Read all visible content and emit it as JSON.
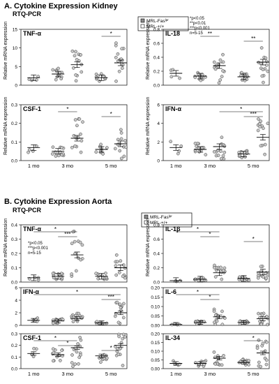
{
  "figure": {
    "colors": {
      "line": "#000000",
      "dot_fill": "#c8c8c8",
      "dot_edge": "#3a3a3a"
    },
    "groups": [
      "1 mo",
      "3 mo",
      "5 mo"
    ],
    "sections": [
      {
        "title": "A. Cytokine Expression Kidney",
        "subtitle": "RTQ-PCR",
        "legend": [
          "MRL-Fas",
          "MRL-+/+"
        ],
        "legend_superscript": "lpr",
        "stats_note": [
          "*p<0.05",
          "**p<0.01",
          "***p<0.001",
          "n=5-15"
        ]
      },
      {
        "title": "B. Cytokine Expression Aorta",
        "subtitle": "RTQ-PCR",
        "legend": [
          "MRL-Fas",
          "MRL-+/+"
        ],
        "legend_superscript": "lpr",
        "stats_note": [
          "*p<0.05",
          "***p<0.001",
          "n=5-15"
        ]
      }
    ],
    "ylabel": "Relative mRNA expression"
  },
  "chart_data": [
    {
      "type": "scatter",
      "panel": "A",
      "title": "TNF-α",
      "ylim": [
        0,
        15
      ],
      "yticks": [
        0,
        5,
        10,
        15
      ],
      "categories": [
        "1 mo",
        "3 mo",
        "5 mo"
      ],
      "series": [
        {
          "name": "MRL-+/+",
          "x": [
            "1 mo",
            "3 mo",
            "5 mo"
          ],
          "mean": [
            2,
            3,
            2
          ]
        },
        {
          "name": "MRL-Fas lpr",
          "x": [
            "1 mo",
            "3 mo",
            "5 mo"
          ],
          "mean": [
            null,
            5.5,
            6
          ]
        }
      ],
      "annotations": [
        {
          "stars": "*",
          "between": [
            "5 mo MRL-+/+",
            "5 mo MRL-Fas lpr"
          ]
        }
      ]
    },
    {
      "type": "scatter",
      "panel": "A",
      "title": "IL-18",
      "ylim": [
        0,
        0.8
      ],
      "yticks": [
        0,
        0.2,
        0.4,
        0.6,
        0.8
      ],
      "categories": [
        "1 mo",
        "3 mo",
        "5 mo"
      ],
      "series": [
        {
          "name": "MRL-+/+",
          "x": [
            "1 mo",
            "3 mo",
            "5 mo"
          ],
          "mean": [
            0.17,
            0.13,
            0.12
          ]
        },
        {
          "name": "MRL-Fas lpr",
          "x": [
            "1 mo",
            "3 mo",
            "5 mo"
          ],
          "mean": [
            null,
            0.28,
            0.33
          ]
        }
      ],
      "annotations": [
        {
          "stars": "**",
          "between": [
            "3 mo MRL-+/+",
            "3 mo MRL-Fas lpr"
          ]
        },
        {
          "stars": "**",
          "between": [
            "5 mo MRL-+/+",
            "5 mo MRL-Fas lpr"
          ]
        }
      ]
    },
    {
      "type": "scatter",
      "panel": "A",
      "title": "CSF-1",
      "ylim": [
        0,
        0.3
      ],
      "yticks": [
        0,
        0.1,
        0.2,
        0.3
      ],
      "categories": [
        "1 mo",
        "3 mo",
        "5 mo"
      ],
      "series": [
        {
          "name": "MRL-+/+",
          "x": [
            "1 mo",
            "3 mo",
            "5 mo"
          ],
          "mean": [
            0.07,
            0.05,
            0.06
          ]
        },
        {
          "name": "MRL-Fas lpr",
          "x": [
            "1 mo",
            "3 mo",
            "5 mo"
          ],
          "mean": [
            null,
            0.12,
            0.09
          ]
        }
      ],
      "annotations": [
        {
          "stars": "*",
          "between": [
            "3 mo MRL-+/+",
            "3 mo MRL-Fas lpr"
          ]
        },
        {
          "stars": "*",
          "between": [
            "5 mo MRL-+/+",
            "5 mo MRL-Fas lpr"
          ]
        }
      ]
    },
    {
      "type": "scatter",
      "panel": "A",
      "title": "IFN-α",
      "ylim": [
        0,
        6
      ],
      "yticks": [
        0,
        2,
        4,
        6
      ],
      "categories": [
        "1 mo",
        "3 mo",
        "5 mo"
      ],
      "series": [
        {
          "name": "MRL-+/+",
          "x": [
            "1 mo",
            "3 mo",
            "5 mo"
          ],
          "mean": [
            1.4,
            1.2,
            0.7
          ]
        },
        {
          "name": "MRL-Fas lpr",
          "x": [
            "1 mo",
            "3 mo",
            "5 mo"
          ],
          "mean": [
            null,
            1.5,
            2.5
          ]
        }
      ],
      "annotations": [
        {
          "stars": "*",
          "between": [
            "3 mo MRL-Fas lpr",
            "5 mo MRL-Fas lpr"
          ]
        },
        {
          "stars": "***",
          "between": [
            "5 mo MRL-+/+",
            "5 mo MRL-Fas lpr"
          ]
        }
      ]
    },
    {
      "type": "scatter",
      "panel": "B",
      "title": "TNF-α",
      "ylim": [
        0,
        0.4
      ],
      "yticks": [
        0,
        0.1,
        0.2,
        0.3,
        0.4
      ],
      "categories": [
        "1 mo",
        "3 mo",
        "5 mo"
      ],
      "series": [
        {
          "name": "MRL-+/+",
          "x": [
            "1 mo",
            "3 mo",
            "5 mo"
          ],
          "mean": [
            0.03,
            0.04,
            0.04
          ]
        },
        {
          "name": "MRL-Fas lpr",
          "x": [
            "1 mo",
            "3 mo",
            "5 mo"
          ],
          "mean": [
            null,
            0.19,
            0.1
          ]
        }
      ],
      "annotations": [
        {
          "stars": "*",
          "between": [
            "1 mo MRL-+/+",
            "3 mo MRL-Fas lpr"
          ]
        },
        {
          "stars": "***",
          "between": [
            "3 mo MRL-+/+",
            "3 mo MRL-Fas lpr"
          ]
        }
      ]
    },
    {
      "type": "scatter",
      "panel": "B",
      "title": "IL-1β",
      "ylim": [
        0,
        0.8
      ],
      "yticks": [
        0,
        0.2,
        0.4,
        0.6,
        0.8
      ],
      "categories": [
        "1 mo",
        "3 mo",
        "5 mo"
      ],
      "series": [
        {
          "name": "MRL-+/+",
          "x": [
            "1 mo",
            "3 mo",
            "5 mo"
          ],
          "mean": [
            0.02,
            0.04,
            0.05
          ]
        },
        {
          "name": "MRL-Fas lpr",
          "x": [
            "1 mo",
            "3 mo",
            "5 mo"
          ],
          "mean": [
            null,
            0.13,
            0.14
          ]
        }
      ],
      "annotations": [
        {
          "stars": "*",
          "between": [
            "1 mo MRL-+/+",
            "3 mo MRL-Fas lpr"
          ]
        },
        {
          "stars": "*",
          "between": [
            "3 mo MRL-+/+",
            "3 mo MRL-Fas lpr"
          ]
        },
        {
          "stars": "*",
          "between": [
            "5 mo MRL-+/+",
            "5 mo MRL-Fas lpr"
          ]
        }
      ]
    },
    {
      "type": "scatter",
      "panel": "B",
      "title": "IFN-α",
      "ylim": [
        0,
        6
      ],
      "yticks": [
        0,
        2,
        4,
        6
      ],
      "categories": [
        "1 mo",
        "3 mo",
        "5 mo"
      ],
      "series": [
        {
          "name": "MRL-+/+",
          "x": [
            "1 mo",
            "3 mo",
            "5 mo"
          ],
          "mean": [
            0.8,
            0.7,
            0.4
          ]
        },
        {
          "name": "MRL-Fas lpr",
          "x": [
            "1 mo",
            "3 mo",
            "5 mo"
          ],
          "mean": [
            null,
            1.1,
            2.0
          ]
        }
      ],
      "annotations": [
        {
          "stars": "*",
          "between": [
            "1 mo MRL-+/+",
            "5 mo MRL-Fas lpr"
          ]
        },
        {
          "stars": "***",
          "between": [
            "5 mo MRL-+/+",
            "5 mo MRL-Fas lpr"
          ]
        }
      ]
    },
    {
      "type": "scatter",
      "panel": "B",
      "title": "IL-6",
      "ylim": [
        0,
        0.2
      ],
      "yticks": [
        0,
        0.05,
        0.1,
        0.15,
        0.2
      ],
      "categories": [
        "1 mo",
        "3 mo",
        "5 mo"
      ],
      "series": [
        {
          "name": "MRL-+/+",
          "x": [
            "1 mo",
            "3 mo",
            "5 mo"
          ],
          "mean": [
            0.005,
            0.015,
            0.015
          ]
        },
        {
          "name": "MRL-Fas lpr",
          "x": [
            "1 mo",
            "3 mo",
            "5 mo"
          ],
          "mean": [
            null,
            0.045,
            0.035
          ]
        }
      ],
      "annotations": [
        {
          "stars": "*",
          "between": [
            "1 mo MRL-+/+",
            "3 mo MRL-Fas lpr"
          ]
        },
        {
          "stars": "*",
          "between": [
            "3 mo MRL-+/+",
            "3 mo MRL-Fas lpr"
          ]
        }
      ]
    },
    {
      "type": "scatter",
      "panel": "B",
      "title": "CSF-1",
      "ylim": [
        0,
        0.3
      ],
      "yticks": [
        0,
        0.1,
        0.2,
        0.3
      ],
      "categories": [
        "1 mo",
        "3 mo",
        "5 mo"
      ],
      "series": [
        {
          "name": "MRL-+/+",
          "x": [
            "1 mo",
            "3 mo",
            "5 mo"
          ],
          "mean": [
            0.13,
            0.12,
            0.11
          ]
        },
        {
          "name": "MRL-Fas lpr",
          "x": [
            "1 mo",
            "3 mo",
            "5 mo"
          ],
          "mean": [
            null,
            0.18,
            0.2
          ]
        }
      ],
      "annotations": [
        {
          "stars": "*",
          "between": [
            "1 mo MRL-+/+",
            "3 mo MRL-Fas lpr"
          ]
        },
        {
          "stars": "*",
          "between": [
            "3 mo MRL-+/+",
            "3 mo MRL-Fas lpr"
          ]
        },
        {
          "stars": "*",
          "between": [
            "5 mo MRL-+/+",
            "5 mo MRL-Fas lpr"
          ]
        }
      ]
    },
    {
      "type": "scatter",
      "panel": "B",
      "title": "IL-34",
      "ylim": [
        0,
        0.2
      ],
      "yticks": [
        0,
        0.05,
        0.1,
        0.15,
        0.2
      ],
      "categories": [
        "1 mo",
        "3 mo",
        "5 mo"
      ],
      "series": [
        {
          "name": "MRL-+/+",
          "x": [
            "1 mo",
            "3 mo",
            "5 mo"
          ],
          "mean": [
            0.03,
            0.03,
            0.035
          ]
        },
        {
          "name": "MRL-Fas lpr",
          "x": [
            "1 mo",
            "3 mo",
            "5 mo"
          ],
          "mean": [
            null,
            0.06,
            0.09
          ]
        }
      ],
      "annotations": [
        {
          "stars": "*",
          "between": [
            "5 mo MRL-+/+",
            "5 mo MRL-Fas lpr"
          ]
        }
      ]
    }
  ]
}
